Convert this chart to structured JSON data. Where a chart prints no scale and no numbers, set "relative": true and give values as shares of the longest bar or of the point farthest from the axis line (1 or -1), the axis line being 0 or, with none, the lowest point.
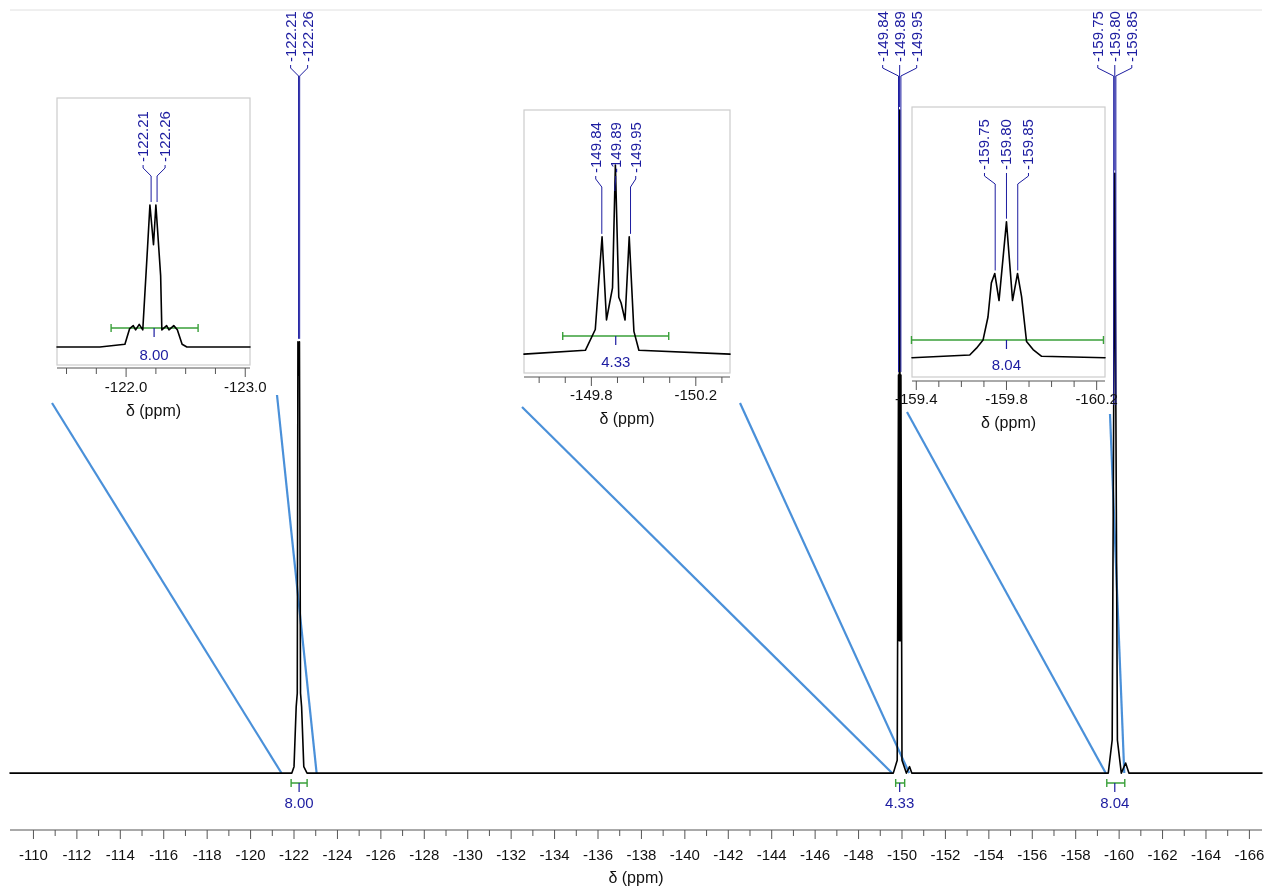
{
  "chart_data": [
    {
      "type": "line",
      "relative": true,
      "xlabel": "δ (ppm)",
      "xlim": [
        -108.92,
        -166.58
      ],
      "xticks": [
        -110,
        {
          "value": -111,
          "label": null
        },
        -112,
        {
          "value": -113,
          "label": null
        },
        -114,
        {
          "value": -115,
          "label": null
        },
        -116,
        {
          "value": -117,
          "label": null
        },
        -118,
        {
          "value": -119,
          "label": null
        },
        -120,
        {
          "value": -121,
          "label": null
        },
        -122,
        {
          "value": -123,
          "label": null
        },
        -124,
        {
          "value": -125,
          "label": null
        },
        -126,
        {
          "value": -127,
          "label": null
        },
        -128,
        {
          "value": -129,
          "label": null
        },
        -130,
        {
          "value": -131,
          "label": null
        },
        -132,
        {
          "value": -133,
          "label": null
        },
        -134,
        {
          "value": -135,
          "label": null
        },
        -136,
        {
          "value": -137,
          "label": null
        },
        -138,
        {
          "value": -139,
          "label": null
        },
        -140,
        {
          "value": -141,
          "label": null
        },
        -142,
        {
          "value": -143,
          "label": null
        },
        -144,
        {
          "value": -145,
          "label": null
        },
        -146,
        {
          "value": -147,
          "label": null
        },
        -148,
        {
          "value": -149,
          "label": null
        },
        -150,
        {
          "value": -151,
          "label": null
        },
        -152,
        {
          "value": -153,
          "label": null
        },
        -154,
        {
          "value": -155,
          "label": null
        },
        -156,
        {
          "value": -157,
          "label": null
        },
        -158,
        {
          "value": -159,
          "label": null
        },
        -160,
        {
          "value": -161,
          "label": null
        },
        -162,
        {
          "value": -163,
          "label": null
        },
        -164,
        {
          "value": -165,
          "label": null
        },
        -166
      ],
      "series": [
        {
          "color": "#000000",
          "x": [
            -108.92,
            -121.9,
            -122.0,
            -122.1,
            -122.15,
            -122.18,
            -122.22,
            -122.25,
            -122.3,
            -122.35,
            -122.45,
            -122.6,
            -149.6,
            -149.78,
            -149.84,
            -149.87,
            -149.89,
            -149.92,
            -149.95,
            -150.0,
            -150.2,
            -150.35,
            -150.45,
            -159.5,
            -159.68,
            -159.75,
            -159.8,
            -159.85,
            -159.92,
            -160.1,
            -160.3,
            -160.45,
            -166.58
          ],
          "values": [
            0.079,
            0.079,
            0.088,
            0.171,
            0.19,
            0.678,
            0.632,
            0.678,
            0.19,
            0.171,
            0.088,
            0.079,
            0.079,
            0.097,
            0.632,
            0.263,
            1,
            0.263,
            0.632,
            0.097,
            0.079,
            0.088,
            0.079,
            0.079,
            0.125,
            0.586,
            0.912,
            0.586,
            0.125,
            0.079,
            0.093,
            0.079,
            0.079
          ]
        }
      ],
      "annotations": [
        {
          "text": "-122.21",
          "x": -122.21,
          "y": 0.678
        },
        {
          "text": "-122.26",
          "x": -122.26,
          "y": 0.678
        },
        {
          "text": "-149.84",
          "x": -149.84,
          "y": 0.632
        },
        {
          "text": "-149.89",
          "x": -149.89,
          "y": 1
        },
        {
          "text": "-149.95",
          "x": -149.95,
          "y": 0.632
        },
        {
          "text": "-159.75",
          "x": -159.75,
          "y": 0.586
        },
        {
          "text": "-159.80",
          "x": -159.8,
          "y": 0.912
        },
        {
          "text": "-159.85",
          "x": -159.85,
          "y": 0.586
        },
        "8.00",
        "4.33",
        "8.04"
      ]
    },
    {
      "type": "line",
      "relative": true,
      "xlabel": "δ (ppm)",
      "xlim": [
        -121.42,
        -123.04
      ],
      "xticks": [
        {
          "value": -121.5,
          "label": null
        },
        {
          "value": -121.75,
          "label": null
        },
        {
          "value": -122,
          "label": "-122.0"
        },
        {
          "value": -122.25,
          "label": null
        },
        {
          "value": -122.5,
          "label": null
        },
        {
          "value": -122.75,
          "label": null
        },
        {
          "value": -123,
          "label": "-123.0"
        }
      ],
      "series": [
        {
          "color": "#000000",
          "x": [
            -121.42,
            -121.78,
            -121.99,
            -122.03,
            -122.06,
            -122.08,
            -122.11,
            -122.14,
            -122.18,
            -122.2,
            -122.23,
            -122.25,
            -122.29,
            -122.3,
            -122.34,
            -122.36,
            -122.4,
            -122.43,
            -122.47,
            -122.51,
            -123.04
          ],
          "values": [
            0.129,
            0.129,
            0.146,
            0.242,
            0.26,
            0.234,
            0.268,
            0.234,
            0.739,
            1,
            0.756,
            1,
            0.565,
            0.234,
            0.26,
            0.234,
            0.26,
            0.234,
            0.146,
            0.129,
            0.129
          ]
        }
      ],
      "annotations": [
        {
          "text": "-122.21",
          "x": -122.21,
          "y": 1
        },
        {
          "text": "-122.26",
          "x": -122.26,
          "y": 1
        },
        "8.00"
      ]
    },
    {
      "type": "line",
      "relative": true,
      "xlabel": "δ (ppm)",
      "xlim": [
        -149.542,
        -150.331
      ],
      "xticks": [
        {
          "value": -149.6,
          "label": null
        },
        {
          "value": -149.7,
          "label": null
        },
        {
          "value": -149.8,
          "label": "-149.8"
        },
        {
          "value": -149.9,
          "label": null
        },
        {
          "value": -150,
          "label": null
        },
        {
          "value": -150.1,
          "label": null
        },
        {
          "value": -150.2,
          "label": "-150.2"
        },
        {
          "value": -150.3,
          "label": null
        }
      ],
      "series": [
        {
          "color": "#000000",
          "x": [
            -149.542,
            -149.777,
            -149.815,
            -149.841,
            -149.858,
            -149.87,
            -149.881,
            -149.892,
            -149.905,
            -149.914,
            -149.929,
            -149.945,
            -149.963,
            -149.982,
            -150.331
          ],
          "values": [
            0.108,
            0.126,
            0.224,
            0.661,
            0.269,
            0.349,
            0.42,
            1,
            0.376,
            0.349,
            0.269,
            0.661,
            0.215,
            0.126,
            0.108
          ]
        }
      ],
      "annotations": [
        {
          "text": "-149.84",
          "x": -149.84,
          "y": 0.661
        },
        {
          "text": "-149.89",
          "x": -149.89,
          "y": 1
        },
        {
          "text": "-149.95",
          "x": -149.95,
          "y": 0.661
        },
        "4.33"
      ]
    },
    {
      "type": "line",
      "relative": true,
      "xlabel": "δ (ppm)",
      "xlim": [
        -159.381,
        -160.237
      ],
      "xticks": [
        {
          "value": -159.4,
          "label": "-159.4"
        },
        {
          "value": -159.5,
          "label": null
        },
        {
          "value": -159.6,
          "label": null
        },
        {
          "value": -159.7,
          "label": null
        },
        {
          "value": -159.8,
          "label": "-159.8"
        },
        {
          "value": -159.9,
          "label": null
        },
        {
          "value": -160,
          "label": null
        },
        {
          "value": -160.1,
          "label": null
        },
        {
          "value": -160.2,
          "label": "-160.2"
        }
      ],
      "series": [
        {
          "color": "#000000",
          "x": [
            -159.381,
            -159.637,
            -159.667,
            -159.696,
            -159.718,
            -159.733,
            -159.748,
            -159.767,
            -159.8,
            -159.827,
            -159.849,
            -159.867,
            -159.889,
            -159.918,
            -159.956,
            -160.237
          ],
          "values": [
            0.146,
            0.163,
            0.206,
            0.257,
            0.402,
            0.616,
            0.675,
            0.505,
            1,
            0.505,
            0.675,
            0.53,
            0.248,
            0.197,
            0.155,
            0.146
          ]
        }
      ],
      "annotations": [
        {
          "text": "-159.75",
          "x": -159.75,
          "y": 0.675
        },
        {
          "text": "-159.80",
          "x": -159.8,
          "y": 1
        },
        {
          "text": "-159.85",
          "x": -159.85,
          "y": 0.675
        },
        "8.04"
      ]
    }
  ]
}
